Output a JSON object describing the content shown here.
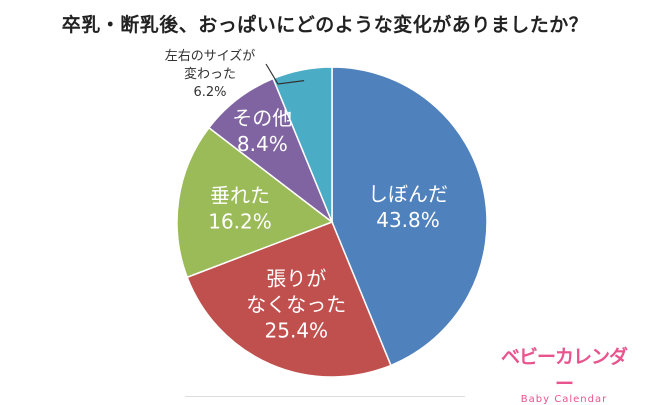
{
  "chart_data": {
    "type": "pie",
    "title": "卒乳・断乳後、おっぱいにどのような変化がありましたか？",
    "start": "12 o'clock, clockwise",
    "slices": [
      {
        "label": [
          "しぼんだ"
        ],
        "value": 43.8,
        "value_text": "43.8%",
        "color": "#4f81bd",
        "label_position": "inside"
      },
      {
        "label": [
          "張りが",
          "なくなった"
        ],
        "value": 25.4,
        "value_text": "25.4%",
        "color": "#c0504d",
        "label_position": "inside"
      },
      {
        "label": [
          "垂れた"
        ],
        "value": 16.2,
        "value_text": "16.2%",
        "color": "#9bbb59",
        "label_position": "inside"
      },
      {
        "label": [
          "その他"
        ],
        "value": 8.4,
        "value_text": "8.4%",
        "color": "#8064a2",
        "label_position": "inside"
      },
      {
        "label": [
          "左右のサイズが",
          "変わった"
        ],
        "value": 6.2,
        "value_text": "6.2%",
        "color": "#4bacc6",
        "label_position": "outside"
      }
    ]
  },
  "logo": {
    "main": "ベビーカレンダー",
    "sub": "Baby Calendar"
  }
}
